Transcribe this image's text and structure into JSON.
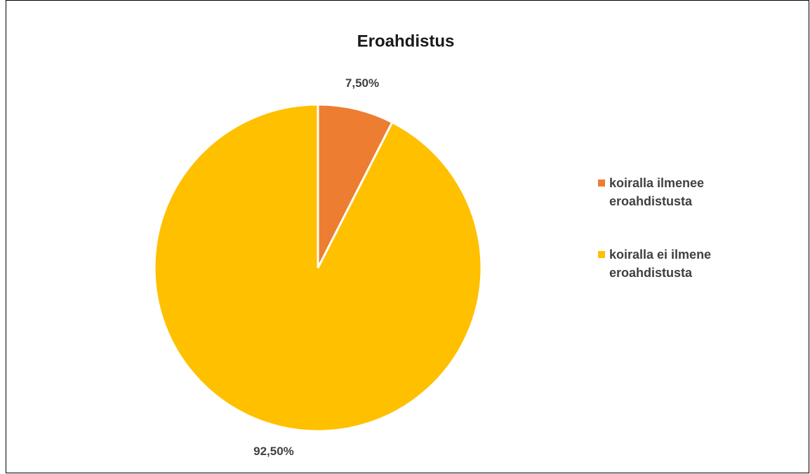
{
  "chart_data": {
    "type": "pie",
    "title": "Eroahdistus",
    "categories": [
      "koiralla ilmenee eroahdistusta",
      "koiralla ei ilmene eroahdistusta"
    ],
    "values": [
      7.5,
      92.5
    ],
    "value_labels": [
      "7,50%",
      "92,50%"
    ],
    "colors": [
      "#ED7D31",
      "#FFC000"
    ],
    "legend": "right"
  }
}
